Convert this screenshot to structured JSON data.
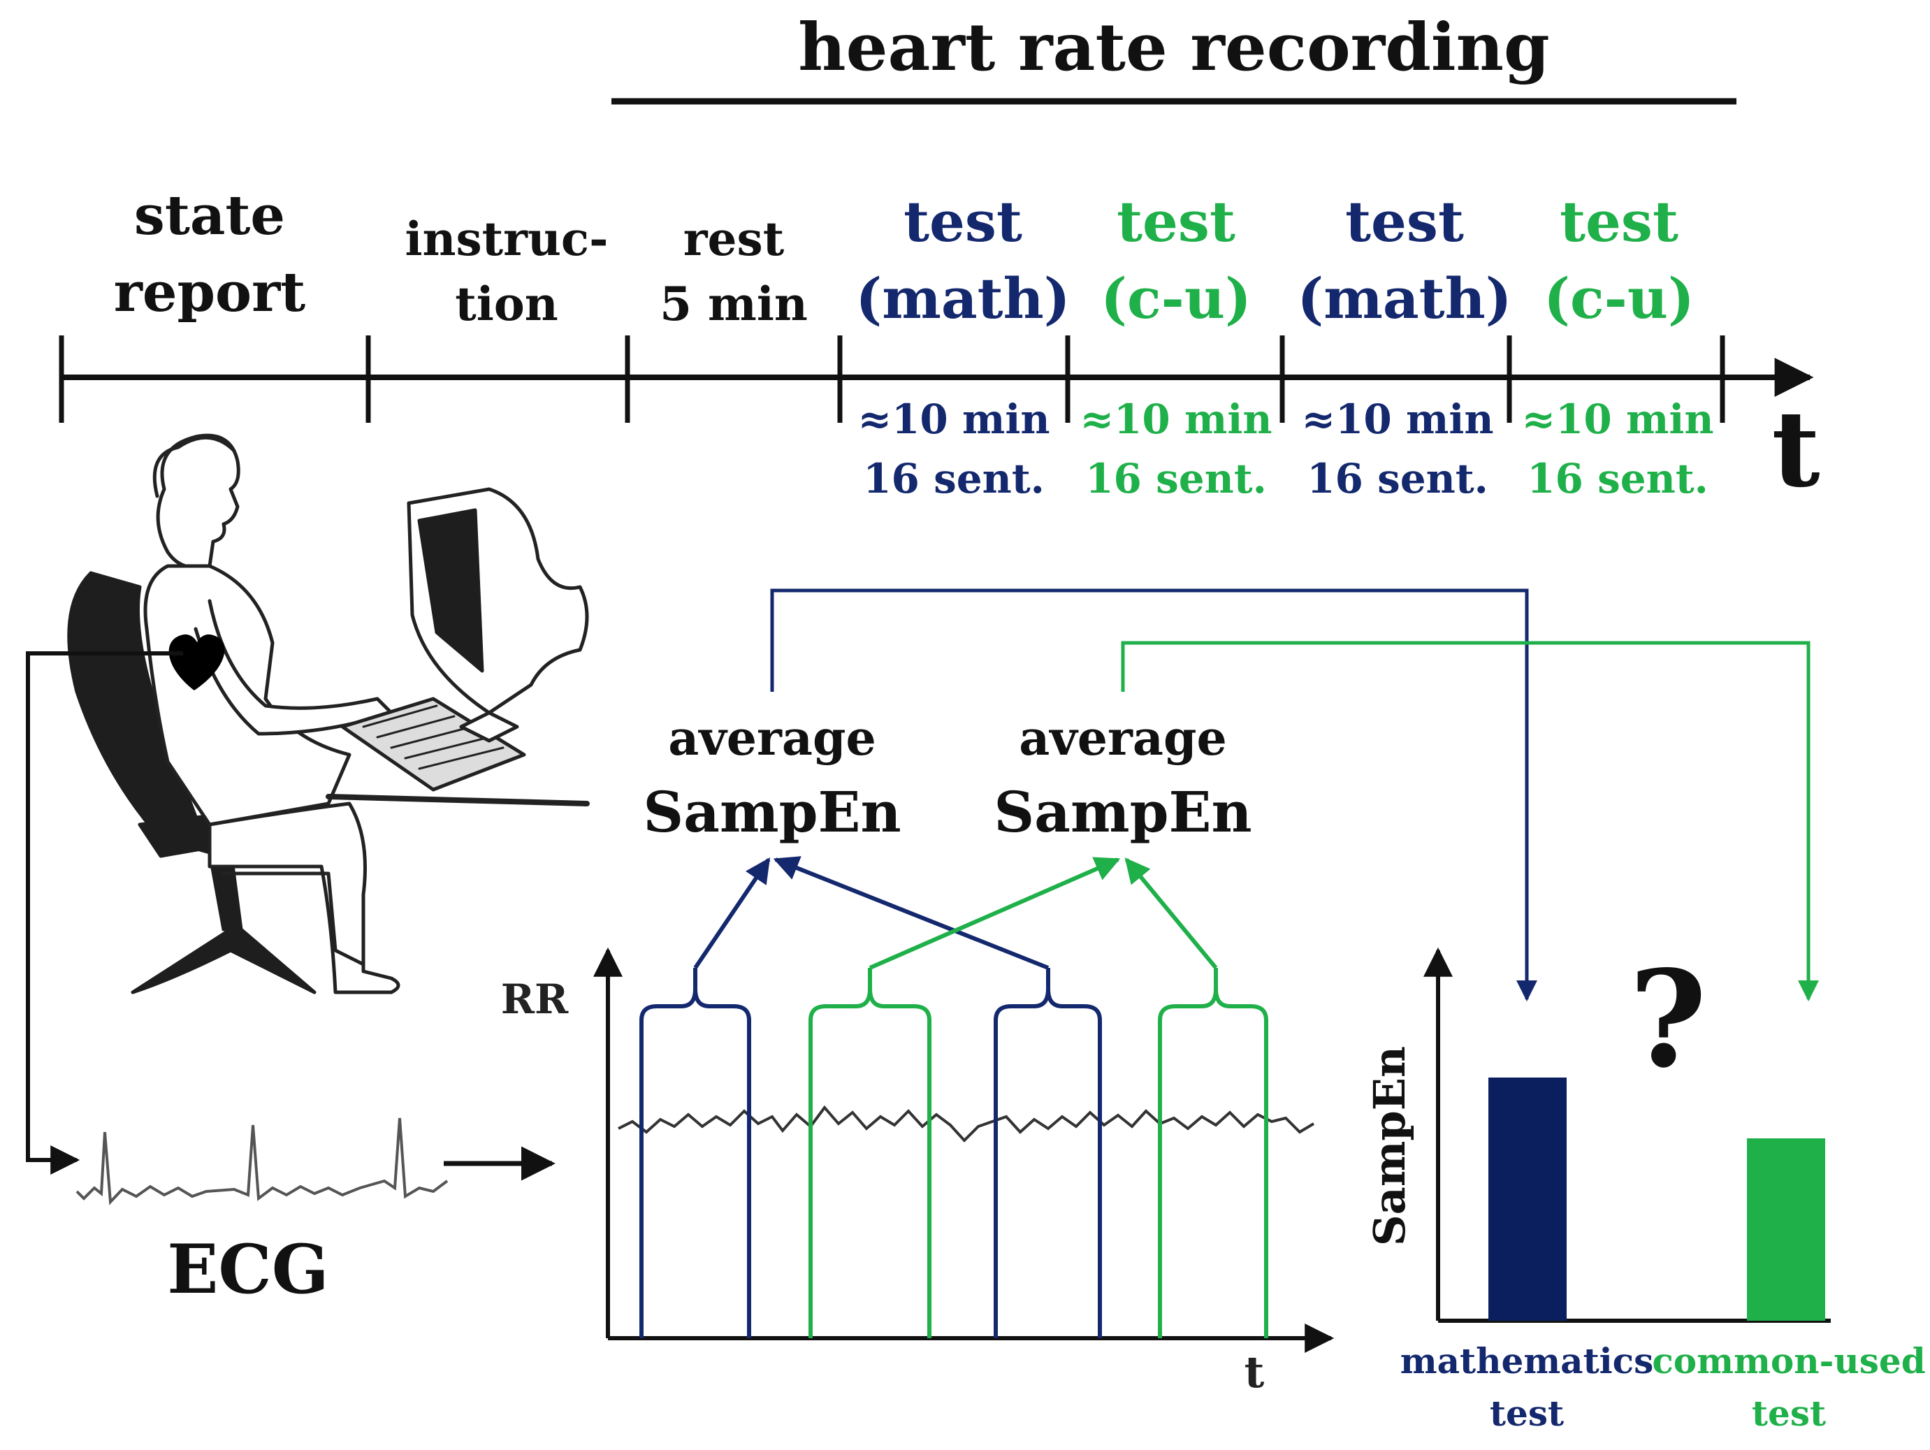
{
  "title": "heart rate recording",
  "colors": {
    "navy": "#14286E",
    "green": "#1FB04A",
    "black": "#111111",
    "bar_navy": "#0B1F5E",
    "bar_green": "#1FB04A"
  },
  "timeline": {
    "phases": [
      {
        "line1": "state",
        "line2": "report",
        "color": "black"
      },
      {
        "line1": "instruc-",
        "line2": "tion",
        "color": "black"
      },
      {
        "line1": "rest",
        "line2": "5 min",
        "color": "black"
      },
      {
        "line1": "test",
        "line2": "(math)",
        "color": "navy",
        "dur1": "≈10 min",
        "dur2": "16 sent."
      },
      {
        "line1": "test",
        "line2": "(c-u)",
        "color": "green",
        "dur1": "≈10 min",
        "dur2": "16 sent."
      },
      {
        "line1": "test",
        "line2": "(math)",
        "color": "navy",
        "dur1": "≈10 min",
        "dur2": "16 sent."
      },
      {
        "line1": "test",
        "line2": "(c-u)",
        "color": "green",
        "dur1": "≈10 min",
        "dur2": "16 sent."
      }
    ],
    "axis_label": "t"
  },
  "ecg_label": "ECG",
  "rr_plot": {
    "y_label": "RR",
    "x_label": "t"
  },
  "averages": [
    {
      "line1": "average",
      "line2": "SampEn",
      "color": "navy"
    },
    {
      "line1": "average",
      "line2": "SampEn",
      "color": "green"
    }
  ],
  "bar_chart": {
    "y_label": "SampEn",
    "question": "?",
    "bars": [
      {
        "label1": "mathematics",
        "label2": "test",
        "value": 0.6,
        "color": "navy"
      },
      {
        "label1": "common-used",
        "label2": "test",
        "value": 0.45,
        "color": "green"
      }
    ]
  }
}
